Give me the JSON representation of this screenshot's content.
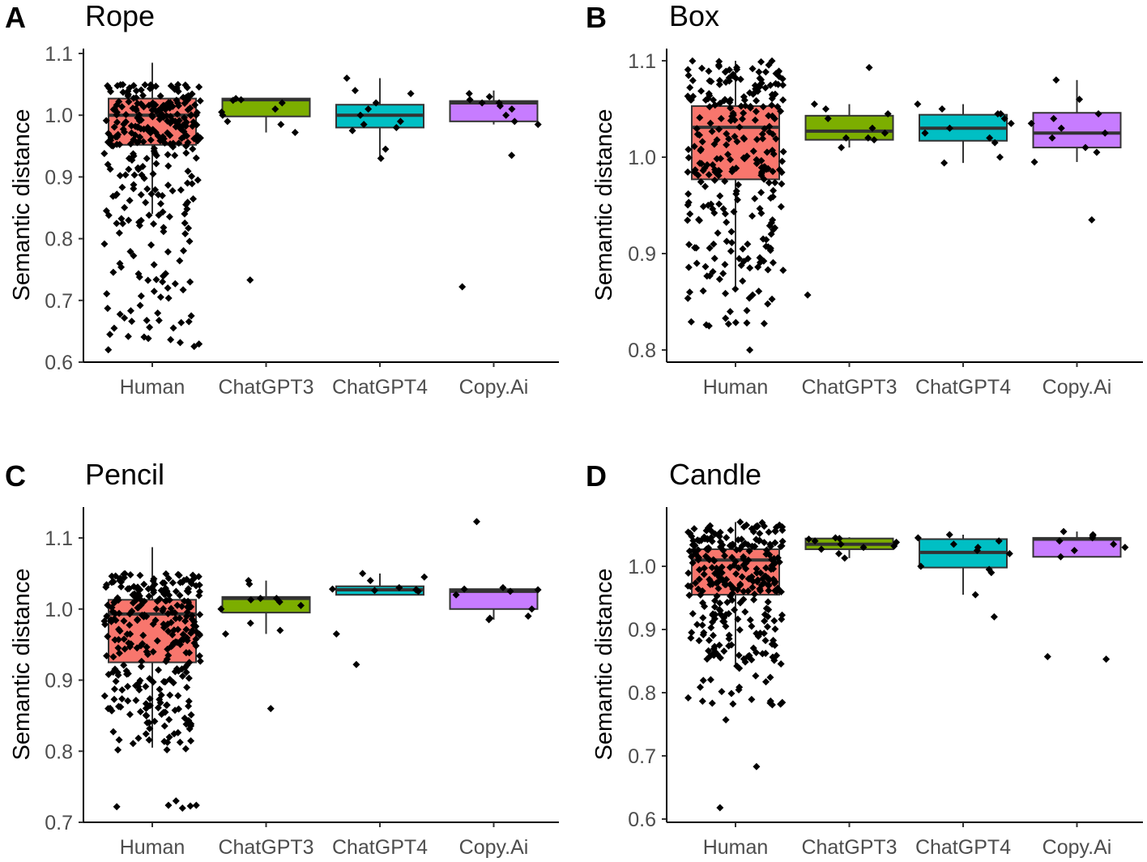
{
  "chart_data": [
    {
      "type": "boxplot",
      "panel": "A",
      "title": "Rope",
      "xlabel": "",
      "ylabel": "Semantic distance",
      "ylim": [
        0.6,
        1.12
      ],
      "yticks": [
        0.6,
        0.7,
        0.8,
        0.9,
        1.0,
        1.1
      ],
      "ytick_labels": [
        "0.6",
        "0.7",
        "0.8",
        "0.9",
        "1.0",
        "1.1"
      ],
      "categories": [
        "Human",
        "ChatGPT3",
        "ChatGPT4",
        "Copy.Ai"
      ],
      "fill_colors": [
        "#f8766d",
        "#7cae00",
        "#00bfc4",
        "#c77cff"
      ],
      "boxes": [
        {
          "q1": 0.952,
          "median": 1.0,
          "q3": 1.027,
          "whisker_low": 0.84,
          "whisker_high": 1.085
        },
        {
          "q1": 0.998,
          "median": 1.025,
          "q3": 1.027,
          "whisker_low": 0.972,
          "whisker_high": 1.027
        },
        {
          "q1": 0.98,
          "median": 1.0,
          "q3": 1.017,
          "whisker_low": 0.93,
          "whisker_high": 1.06
        },
        {
          "q1": 0.99,
          "median": 1.02,
          "q3": 1.023,
          "whisker_low": 0.985,
          "whisker_high": 1.04
        }
      ],
      "points": [
        {
          "group": 0,
          "n": 300,
          "seed": 11,
          "spread": 0.4,
          "mix": [
            [
              0.6,
              0.95,
              1.05
            ],
            [
              0.25,
              0.82,
              0.95
            ],
            [
              0.15,
              0.62,
              0.82
            ]
          ],
          "extra": [
            0.62,
            0.645,
            0.655,
            0.675,
            0.72,
            0.73
          ]
        },
        {
          "group": 1,
          "values": [
            1.025,
            1.027,
            1.02,
            1.005,
            1.0,
            0.99,
            0.985,
            0.972,
            1.01,
            1.024,
            0.733
          ]
        },
        {
          "group": 2,
          "values": [
            1.04,
            1.035,
            1.02,
            1.0,
            0.99,
            0.985,
            0.98,
            0.975,
            1.06,
            0.945,
            0.93,
            1.01
          ]
        },
        {
          "group": 3,
          "values": [
            1.035,
            1.03,
            1.025,
            1.02,
            1.02,
            1.015,
            1.01,
            1.0,
            0.99,
            0.985,
            0.935,
            0.722
          ]
        }
      ]
    },
    {
      "type": "boxplot",
      "panel": "B",
      "title": "Box",
      "xlabel": "",
      "ylabel": "Semantic distance",
      "ylim": [
        0.79,
        1.115
      ],
      "yticks": [
        0.8,
        0.9,
        1.0,
        1.1
      ],
      "ytick_labels": [
        "0.8",
        "0.9",
        "1.0",
        "1.1"
      ],
      "categories": [
        "Human",
        "ChatGPT3",
        "ChatGPT4",
        "Copy.Ai"
      ],
      "fill_colors": [
        "#f8766d",
        "#7cae00",
        "#00bfc4",
        "#c77cff"
      ],
      "boxes": [
        {
          "q1": 0.977,
          "median": 1.031,
          "q3": 1.053,
          "whisker_low": 0.865,
          "whisker_high": 1.1
        },
        {
          "q1": 1.018,
          "median": 1.027,
          "q3": 1.043,
          "whisker_low": 1.01,
          "whisker_high": 1.055
        },
        {
          "q1": 1.017,
          "median": 1.03,
          "q3": 1.044,
          "whisker_low": 0.994,
          "whisker_high": 1.055
        },
        {
          "q1": 1.01,
          "median": 1.025,
          "q3": 1.046,
          "whisker_low": 0.995,
          "whisker_high": 1.08
        }
      ],
      "points": [
        {
          "group": 0,
          "n": 280,
          "seed": 23,
          "spread": 0.4,
          "mix": [
            [
              0.6,
              0.98,
              1.1
            ],
            [
              0.3,
              0.88,
              0.98
            ],
            [
              0.1,
              0.825,
              0.88
            ]
          ],
          "extra": [
            0.8,
            0.825,
            0.826,
            0.827,
            0.828
          ]
        },
        {
          "group": 1,
          "values": [
            1.04,
            1.05,
            1.055,
            1.03,
            1.02,
            1.025,
            1.018,
            1.01,
            1.02,
            1.045,
            1.093,
            0.857
          ]
        },
        {
          "group": 2,
          "values": [
            1.05,
            1.045,
            1.04,
            1.035,
            1.03,
            1.025,
            1.02,
            1.015,
            1.055,
            0.994,
            1.0,
            1.045
          ]
        },
        {
          "group": 3,
          "values": [
            1.08,
            1.06,
            1.045,
            1.04,
            1.035,
            1.03,
            1.025,
            1.02,
            1.01,
            1.005,
            0.995,
            0.935
          ]
        }
      ]
    },
    {
      "type": "boxplot",
      "panel": "C",
      "title": "Pencil",
      "xlabel": "",
      "ylabel": "Semantic distance",
      "ylim": [
        0.7,
        1.142
      ],
      "yticks": [
        0.7,
        0.8,
        0.9,
        1.0,
        1.1
      ],
      "ytick_labels": [
        "0.7",
        "0.8",
        "0.9",
        "1.0",
        "1.1"
      ],
      "categories": [
        "Human",
        "ChatGPT3",
        "ChatGPT4",
        "Copy.Ai"
      ],
      "fill_colors": [
        "#f8766d",
        "#7cae00",
        "#00bfc4",
        "#c77cff"
      ],
      "boxes": [
        {
          "q1": 0.925,
          "median": 0.993,
          "q3": 1.013,
          "whisker_low": 0.805,
          "whisker_high": 1.087
        },
        {
          "q1": 0.995,
          "median": 1.015,
          "q3": 1.017,
          "whisker_low": 0.965,
          "whisker_high": 1.04
        },
        {
          "q1": 1.02,
          "median": 1.027,
          "q3": 1.032,
          "whisker_low": 1.02,
          "whisker_high": 1.05
        },
        {
          "q1": 1.0,
          "median": 1.025,
          "q3": 1.028,
          "whisker_low": 0.985,
          "whisker_high": 1.028
        }
      ],
      "points": [
        {
          "group": 0,
          "n": 300,
          "seed": 37,
          "spread": 0.4,
          "mix": [
            [
              0.55,
              0.95,
              1.05
            ],
            [
              0.35,
              0.85,
              0.95
            ],
            [
              0.1,
              0.8,
              0.85
            ]
          ],
          "extra": [
            0.722,
            0.723,
            0.724,
            0.72,
            0.73,
            0.724,
            0.84,
            0.842
          ]
        },
        {
          "group": 1,
          "values": [
            1.04,
            1.035,
            1.015,
            1.015,
            1.013,
            1.01,
            1.005,
            1.0,
            0.98,
            0.97,
            0.965,
            0.86
          ]
        },
        {
          "group": 2,
          "values": [
            1.05,
            1.045,
            1.04,
            1.03,
            1.028,
            1.027,
            1.027,
            1.026,
            1.025,
            0.965,
            0.922
          ]
        },
        {
          "group": 3,
          "values": [
            1.123,
            1.03,
            1.028,
            1.027,
            1.025,
            1.02,
            1.0,
            0.99,
            0.987,
            0.985
          ]
        }
      ]
    },
    {
      "type": "boxplot",
      "panel": "D",
      "title": "Candle",
      "xlabel": "",
      "ylabel": "Semantic distance",
      "ylim": [
        0.6,
        1.075
      ],
      "yticks": [
        0.6,
        0.7,
        0.8,
        0.9,
        1.0
      ],
      "ytick_labels": [
        "0.6",
        "0.7",
        "0.8",
        "0.9",
        "1.0"
      ],
      "categories": [
        "Human",
        "ChatGPT3",
        "ChatGPT4",
        "Copy.Ai"
      ],
      "fill_colors": [
        "#f8766d",
        "#7cae00",
        "#00bfc4",
        "#c77cff"
      ],
      "boxes": [
        {
          "q1": 0.955,
          "median": 1.01,
          "q3": 1.027,
          "whisker_low": 0.845,
          "whisker_high": 1.07
        },
        {
          "q1": 1.027,
          "median": 1.035,
          "q3": 1.044,
          "whisker_low": 1.013,
          "whisker_high": 1.046
        },
        {
          "q1": 0.998,
          "median": 1.022,
          "q3": 1.043,
          "whisker_low": 0.955,
          "whisker_high": 1.05
        },
        {
          "q1": 1.015,
          "median": 1.043,
          "q3": 1.045,
          "whisker_low": 1.015,
          "whisker_high": 1.055
        }
      ],
      "points": [
        {
          "group": 0,
          "n": 300,
          "seed": 53,
          "spread": 0.4,
          "mix": [
            [
              0.6,
              0.95,
              1.07
            ],
            [
              0.3,
              0.85,
              0.95
            ],
            [
              0.1,
              0.78,
              0.85
            ]
          ],
          "extra": [
            0.618,
            0.683,
            0.757
          ]
        },
        {
          "group": 1,
          "values": [
            1.045,
            1.044,
            1.043,
            1.04,
            1.038,
            1.035,
            1.032,
            1.03,
            1.027,
            1.02,
            1.013
          ]
        },
        {
          "group": 2,
          "values": [
            1.05,
            1.045,
            1.04,
            1.035,
            1.03,
            1.025,
            1.02,
            1.0,
            0.995,
            0.99,
            0.955,
            0.92
          ]
        },
        {
          "group": 3,
          "values": [
            1.055,
            1.05,
            1.048,
            1.045,
            1.04,
            1.035,
            1.03,
            1.025,
            1.015,
            0.857,
            0.853
          ]
        }
      ]
    }
  ]
}
